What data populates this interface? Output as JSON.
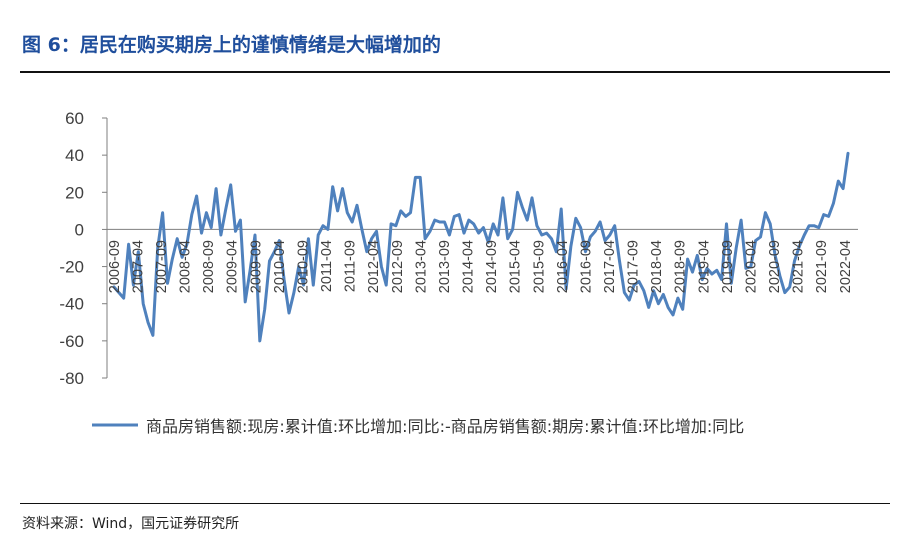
{
  "title": "图 6：居民在购买期房上的谨慎情绪是大幅增加的",
  "source": "资料来源：Wind，国元证券研究所",
  "chart_data": {
    "type": "line",
    "title": "图 6：居民在购买期房上的谨慎情绪是大幅增加的",
    "xlabel": "",
    "ylabel": "",
    "ylim": [
      -80,
      60
    ],
    "yticks": [
      60,
      40,
      20,
      0,
      -20,
      -40,
      -60,
      -80
    ],
    "xtick_labels": [
      "2006-09",
      "2007-04",
      "2007-09",
      "2008-04",
      "2008-09",
      "2009-04",
      "2009-09",
      "2010-04",
      "2010-09",
      "2011-04",
      "2011-09",
      "2012-04",
      "2012-09",
      "2013-04",
      "2013-09",
      "2014-04",
      "2014-09",
      "2015-04",
      "2015-09",
      "2016-04",
      "2016-09",
      "2017-04",
      "2017-09",
      "2018-04",
      "2018-09",
      "2019-04",
      "2019-09",
      "2020-04",
      "2020-09",
      "2021-04",
      "2021-09",
      "2022-04"
    ],
    "grid": false,
    "legend_position": "bottom",
    "line_color": "#4f81bd",
    "series": [
      {
        "name": "商品房销售额:现房:累计值:环比增加:同比:-商品房销售额:期房:累计值:环比增加:同比",
        "values": [
          -31,
          -34,
          -37,
          -8,
          -30,
          -12,
          -40,
          -50,
          -57,
          -10,
          9,
          -29,
          -16,
          -5,
          -15,
          -8,
          8,
          18,
          -2,
          9,
          1,
          22,
          -3,
          11,
          24,
          -1,
          5,
          -39,
          -22,
          -3,
          -60,
          -43,
          -17,
          -12,
          -6,
          -27,
          -45,
          -34,
          -20,
          -30,
          -5,
          -30,
          -3,
          2,
          0,
          23,
          10,
          22,
          9,
          4,
          13,
          0,
          -12,
          -5,
          -1,
          -20,
          -30,
          3,
          2,
          10,
          7,
          9,
          28,
          28,
          -5,
          -1,
          5,
          4,
          4,
          -3,
          7,
          8,
          -2,
          5,
          3,
          -2,
          1,
          -7,
          3,
          -3,
          17,
          -5,
          0,
          20,
          12,
          5,
          17,
          2,
          -3,
          -2,
          -5,
          -12,
          11,
          -32,
          -9,
          6,
          1,
          -12,
          -4,
          -1,
          4,
          -6,
          -3,
          2,
          -17,
          -34,
          -38,
          -30,
          -28,
          -33,
          -42,
          -33,
          -40,
          -35,
          -42,
          -46,
          -37,
          -43,
          -16,
          -23,
          -14,
          -27,
          -21,
          -24,
          -22,
          -27,
          3,
          -29,
          -10,
          5,
          -21,
          -20,
          -6,
          -4,
          9,
          3,
          -14,
          -25,
          -34,
          -31,
          -17,
          -9,
          -3,
          2,
          2,
          1,
          8,
          7,
          14,
          26,
          22,
          41
        ]
      }
    ]
  }
}
